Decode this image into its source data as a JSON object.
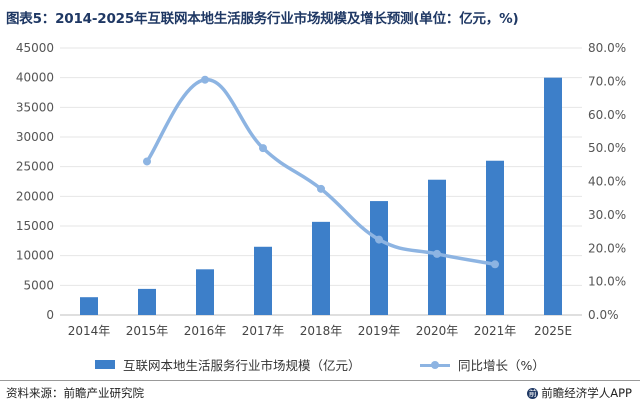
{
  "title": "图表5：2014-2025年互联网本地生活服务行业市场规模及增长预测(单位：亿元，%)",
  "colors": {
    "bar": "#3d7fc9",
    "line": "#8db4e2",
    "title": "#1f3864",
    "grid": "#e6e6e6"
  },
  "chart_data": {
    "type": "bar+line",
    "categories": [
      "2014年",
      "2015年",
      "2016年",
      "2017年",
      "2018年",
      "2019年",
      "2020年",
      "2021年",
      "2025E"
    ],
    "series": [
      {
        "name": "互联网本地生活服务行业市场规模（亿元）",
        "type": "bar",
        "axis": "left",
        "values": [
          3000,
          4400,
          7700,
          11500,
          15700,
          19200,
          22800,
          26000,
          40000
        ]
      },
      {
        "name": "同比增长（%）",
        "type": "line",
        "axis": "right",
        "values": [
          null,
          46.0,
          70.5,
          50.0,
          37.8,
          22.6,
          18.3,
          15.2,
          null
        ]
      }
    ],
    "y_left": {
      "min": 0,
      "max": 45000,
      "ticks": [
        "0",
        "5000",
        "10000",
        "15000",
        "20000",
        "25000",
        "30000",
        "35000",
        "40000",
        "45000"
      ]
    },
    "y_right": {
      "min": 0,
      "max": 80,
      "ticks": [
        "0.0%",
        "10.0%",
        "20.0%",
        "30.0%",
        "40.0%",
        "50.0%",
        "60.0%",
        "70.0%",
        "80.0%"
      ]
    },
    "grid": true,
    "legend_position": "bottom"
  },
  "legend": {
    "bar_label": "互联网本地生活服务行业市场规模（亿元）",
    "line_label": "同比增长（%）"
  },
  "footer": {
    "source": "资料来源：前瞻产业研究院",
    "brand_icon": "前",
    "brand": "前瞻经济学人APP"
  }
}
